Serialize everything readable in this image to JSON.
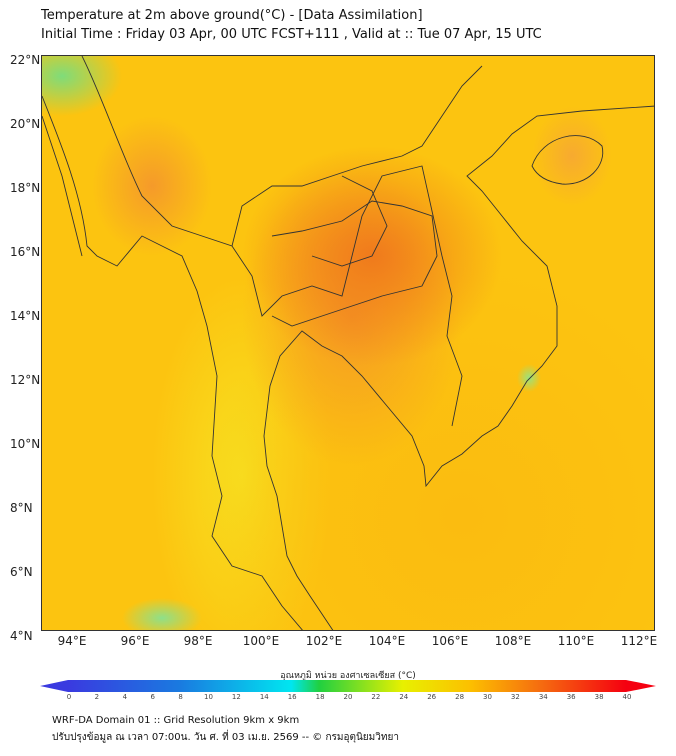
{
  "title": {
    "line1": "Temperature at 2m above ground(°C) - [Data Assimilation]",
    "line2": "Initial Time : Friday 03 Apr, 00 UTC FCST+111 , Valid at :: Tue 07 Apr, 15 UTC"
  },
  "map": {
    "lat_labels": [
      "22°N",
      "20°N",
      "18°N",
      "16°N",
      "14°N",
      "12°N",
      "10°N",
      "8°N",
      "6°N",
      "4°N"
    ],
    "lon_labels": [
      "94°E",
      "96°E",
      "98°E",
      "100°E",
      "102°E",
      "104°E",
      "106°E",
      "108°E",
      "110°E",
      "112°E"
    ]
  },
  "colorbar": {
    "label": "อุณหภูมิ หน่วย องศาเซลเซียส (°C)",
    "ticks": [
      "0",
      "2",
      "4",
      "6",
      "8",
      "10",
      "12",
      "14",
      "16",
      "18",
      "20",
      "22",
      "24",
      "26",
      "28",
      "30",
      "32",
      "34",
      "36",
      "38",
      "40"
    ],
    "colors": [
      "#3a3ae0",
      "#1a7ae0",
      "#00e6f0",
      "#20d040",
      "#e8f000",
      "#fcc000",
      "#f56a10",
      "#f50010"
    ]
  },
  "footer": {
    "line1": "WRF-DA Domain 01 :: Grid Resolution 9km x 9km",
    "line2": "ปรับปรุงข้อมูล ณ เวลา 07:00น. วัน ศ. ที่ 03 เม.ย. 2569 -- © กรมอุตุนิยมวิทยา"
  }
}
